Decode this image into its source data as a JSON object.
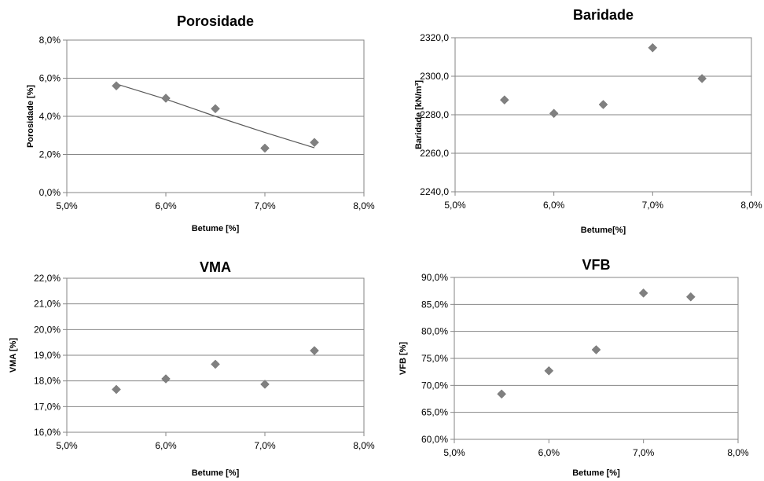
{
  "chart_data": [
    {
      "type": "scatter",
      "title": "Porosidade",
      "xlabel": "Betume [%]",
      "ylabel": "Porosidade [%]",
      "xlim": [
        5.0,
        8.0
      ],
      "ylim": [
        0.0,
        8.0
      ],
      "xticks": [
        5.0,
        6.0,
        7.0,
        8.0
      ],
      "yticks": [
        0.0,
        2.0,
        4.0,
        6.0,
        8.0
      ],
      "xtick_labels": [
        "5,0%",
        "6,0%",
        "7,0%",
        "8,0%"
      ],
      "ytick_labels": [
        "0,0%",
        "2,0%",
        "4,0%",
        "6,0%",
        "8,0%"
      ],
      "grid": true,
      "marker_color": "#808080",
      "trendline_color": "#595959",
      "series": [
        {
          "x": [
            5.5,
            6.0,
            6.5,
            7.0,
            7.5
          ],
          "y": [
            5.6,
            4.95,
            4.4,
            2.33,
            2.63
          ]
        }
      ],
      "trendline": {
        "x": [
          5.5,
          6.0,
          6.5,
          7.0,
          7.5
        ],
        "y": [
          5.7,
          4.9,
          4.0,
          3.15,
          2.35
        ]
      }
    },
    {
      "type": "scatter",
      "title": "Baridade",
      "xlabel": "Betume[%]",
      "ylabel": "Baridade [kN/m³]",
      "xlim": [
        5.0,
        8.0
      ],
      "ylim": [
        2240.0,
        2320.0
      ],
      "xticks": [
        5.0,
        6.0,
        7.0,
        8.0
      ],
      "yticks": [
        2240.0,
        2260.0,
        2280.0,
        2300.0,
        2320.0
      ],
      "xtick_labels": [
        "5,0%",
        "6,0%",
        "7,0%",
        "8,0%"
      ],
      "ytick_labels": [
        "2240,0",
        "2260,0",
        "2280,0",
        "2300,0",
        "2320,0"
      ],
      "grid": true,
      "marker_color": "#808080",
      "series": [
        {
          "x": [
            5.5,
            6.0,
            6.5,
            7.0,
            7.5
          ],
          "y": [
            2287.7,
            2280.7,
            2285.3,
            2314.8,
            2298.8
          ]
        }
      ]
    },
    {
      "type": "scatter",
      "title": "VMA",
      "xlabel": "Betume [%]",
      "ylabel": "VMA [%]",
      "xlim": [
        5.0,
        8.0
      ],
      "ylim": [
        16.0,
        22.0
      ],
      "xticks": [
        5.0,
        6.0,
        7.0,
        8.0
      ],
      "yticks": [
        16.0,
        17.0,
        18.0,
        19.0,
        20.0,
        21.0,
        22.0
      ],
      "xtick_labels": [
        "5,0%",
        "6,0%",
        "7,0%",
        "8,0%"
      ],
      "ytick_labels": [
        "16,0%",
        "17,0%",
        "18,0%",
        "19,0%",
        "20,0%",
        "21,0%",
        "22,0%"
      ],
      "grid": true,
      "marker_color": "#808080",
      "series": [
        {
          "x": [
            5.5,
            6.0,
            6.5,
            7.0,
            7.5
          ],
          "y": [
            17.67,
            18.08,
            18.65,
            17.87,
            19.18
          ]
        }
      ]
    },
    {
      "type": "scatter",
      "title": "VFB",
      "xlabel": "Betume [%]",
      "ylabel": "VFB [%]",
      "xlim": [
        5.0,
        8.0
      ],
      "ylim": [
        60.0,
        90.0
      ],
      "xticks": [
        5.0,
        6.0,
        7.0,
        8.0
      ],
      "yticks": [
        60.0,
        65.0,
        70.0,
        75.0,
        80.0,
        85.0,
        90.0
      ],
      "xtick_labels": [
        "5,0%",
        "6,0%",
        "7,0%",
        "8,0%"
      ],
      "ytick_labels": [
        "60,0%",
        "65,0%",
        "70,0%",
        "75,0%",
        "80,0%",
        "85,0%",
        "90,0%"
      ],
      "grid": true,
      "marker_color": "#808080",
      "series": [
        {
          "x": [
            5.5,
            6.0,
            6.5,
            7.0,
            7.5
          ],
          "y": [
            68.4,
            72.7,
            76.6,
            87.1,
            86.4
          ]
        }
      ]
    }
  ]
}
